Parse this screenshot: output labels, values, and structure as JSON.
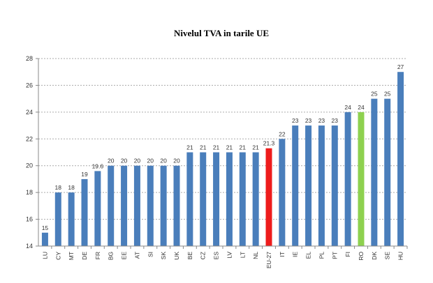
{
  "chart_data": {
    "type": "bar",
    "title": "Nivelul TVA in tarile UE",
    "xlabel": "",
    "ylabel": "",
    "ylim": [
      14,
      28
    ],
    "yticks": [
      14,
      16,
      18,
      20,
      22,
      24,
      26,
      28
    ],
    "grid": true,
    "legend": "none",
    "categories": [
      "LU",
      "CY",
      "MT",
      "DE",
      "FR",
      "BG",
      "EE",
      "AT",
      "SI",
      "SK",
      "UK",
      "BE",
      "CZ",
      "ES",
      "LV",
      "LT",
      "NL",
      "EU-27",
      "IT",
      "IE",
      "EL",
      "PL",
      "PT",
      "FI",
      "RO",
      "DK",
      "SE",
      "HU"
    ],
    "values": [
      15,
      18,
      18,
      19,
      19.6,
      20,
      20,
      20,
      20,
      20,
      20,
      21,
      21,
      21,
      21,
      21,
      21,
      21.3,
      22,
      23,
      23,
      23,
      23,
      24,
      24,
      25,
      25,
      27
    ],
    "colors": {
      "default": "#4a7ebb",
      "EU-27": "#ee1c1c",
      "RO": "#8ed14f"
    }
  }
}
